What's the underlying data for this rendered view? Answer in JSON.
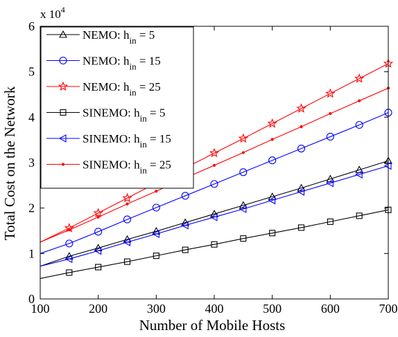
{
  "chart_data": {
    "type": "line",
    "xlabel": "Number of Mobile Hosts",
    "ylabel": "Total Cost on the Network",
    "y_multiplier_base": "x 10",
    "y_multiplier_exp": "4",
    "xlim": [
      100,
      700
    ],
    "ylim": [
      0,
      6
    ],
    "xticks": [
      "100",
      "200",
      "300",
      "400",
      "500",
      "600",
      "700"
    ],
    "yticks": [
      "0",
      "1",
      "2",
      "3",
      "4",
      "5",
      "6"
    ],
    "x": [
      150,
      200,
      250,
      300,
      350,
      400,
      450,
      500,
      550,
      600,
      650,
      700
    ],
    "grid": false,
    "legend_position": "top-left",
    "series": [
      {
        "name": "NEMO: h",
        "sub": "in",
        "suffix": " = 5",
        "color": "#000000",
        "marker": "triangle",
        "values": [
          0.94,
          1.12,
          1.31,
          1.49,
          1.68,
          1.87,
          2.06,
          2.25,
          2.44,
          2.64,
          2.84,
          3.04
        ]
      },
      {
        "name": "NEMO: h",
        "sub": "in",
        "suffix": " = 15",
        "color": "#0000ff",
        "marker": "circle",
        "values": [
          1.22,
          1.48,
          1.75,
          2.01,
          2.27,
          2.53,
          2.79,
          3.05,
          3.31,
          3.57,
          3.83,
          4.1
        ]
      },
      {
        "name": "NEMO: h",
        "sub": "in",
        "suffix": " = 25",
        "color": "#ff0000",
        "marker": "star",
        "values": [
          1.56,
          1.89,
          2.22,
          2.55,
          2.88,
          3.21,
          3.53,
          3.86,
          4.19,
          4.52,
          4.85,
          5.18
        ]
      },
      {
        "name": "SINEMO: h",
        "sub": "in",
        "suffix": " = 5",
        "color": "#000000",
        "marker": "square",
        "values": [
          0.58,
          0.7,
          0.82,
          0.95,
          1.08,
          1.2,
          1.33,
          1.45,
          1.57,
          1.7,
          1.83,
          1.96
        ]
      },
      {
        "name": "SINEMO: h",
        "sub": "in",
        "suffix": " = 15",
        "color": "#0000ff",
        "marker": "triangle-left",
        "values": [
          0.88,
          1.06,
          1.25,
          1.43,
          1.62,
          1.8,
          1.98,
          2.17,
          2.36,
          2.55,
          2.74,
          2.93
        ]
      },
      {
        "name": "SINEMO: h",
        "sub": "in",
        "suffix": " = 25",
        "color": "#ff0000",
        "marker": "dot",
        "values": [
          1.52,
          1.8,
          2.09,
          2.37,
          2.66,
          2.94,
          3.22,
          3.51,
          3.79,
          4.08,
          4.36,
          4.64
        ]
      }
    ],
    "start_point": {
      "x": 100,
      "values": [
        0.72,
        1.0,
        1.25,
        0.45,
        0.72,
        1.25
      ]
    }
  }
}
